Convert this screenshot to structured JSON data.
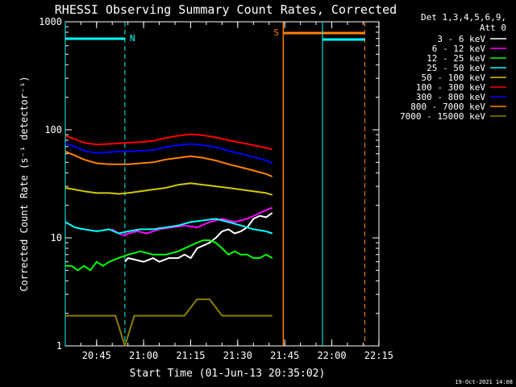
{
  "chart_data": {
    "type": "line",
    "title": "RHESSI Observing Summary Count Rates, Corrected",
    "xlabel": "Start Time (01-Jun-13 20:35:02)",
    "ylabel": "Corrected Count Rate (s⁻¹ detector⁻¹)",
    "y_scale": "log",
    "ylim": [
      1,
      1000
    ],
    "xlim_minutes": [
      0,
      100
    ],
    "x_tick_labels": [
      "20:45",
      "21:00",
      "21:15",
      "21:30",
      "21:45",
      "22:00",
      "22:15"
    ],
    "y_tick_labels": [
      "1",
      "10",
      "100",
      "1000"
    ],
    "legend_header": [
      "Det 1,3,4,5,6,9,",
      "Att 0"
    ],
    "footer_date": "19-Oct-2021 14:08",
    "annotations": [
      {
        "label": "N",
        "x_minutes": 19.0,
        "color": "#00ffff"
      },
      {
        "label": "S",
        "x_minutes": 69.5,
        "color": "#ff8000"
      }
    ],
    "series": [
      {
        "name": "3 - 6 keV",
        "color": "#ffffff"
      },
      {
        "name": "6 - 12 keV",
        "color": "#ff00ff"
      },
      {
        "name": "12 - 25 keV",
        "color": "#00ff00"
      },
      {
        "name": "25 - 50 keV",
        "color": "#00ffff"
      },
      {
        "name": "50 - 100 keV",
        "color": "#d4c800"
      },
      {
        "name": "100 - 300 keV",
        "color": "#ff0000"
      },
      {
        "name": "300 - 800 keV",
        "color": "#0000ff"
      },
      {
        "name": "800 - 7000 keV",
        "color": "#ff8000"
      },
      {
        "name": "7000 - 15000 keV",
        "color": "#8b8000"
      }
    ],
    "series_points": [
      {
        "name": "3 - 6 keV",
        "x": [
          19,
          20,
          22,
          25,
          28,
          30,
          33,
          36,
          38,
          40,
          42,
          44,
          46,
          48,
          50,
          52,
          54,
          56,
          58,
          60,
          62,
          64,
          66
        ],
        "y": [
          6.0,
          6.5,
          6.3,
          6.0,
          6.5,
          6.0,
          6.5,
          6.5,
          7.0,
          6.5,
          8.0,
          8.5,
          9.0,
          10.0,
          11.5,
          12.0,
          11.0,
          11.5,
          12.5,
          15.0,
          16.0,
          15.5,
          17.0
        ]
      },
      {
        "name": "6 - 12 keV",
        "x": [
          15,
          17,
          19,
          20,
          23,
          26,
          30,
          34,
          38,
          42,
          46,
          50,
          54,
          58,
          62,
          66
        ],
        "y": [
          12.0,
          11.0,
          10.5,
          11.0,
          11.5,
          11.0,
          12.0,
          12.5,
          13.0,
          12.5,
          14.0,
          15.0,
          14.0,
          15.0,
          17.0,
          19.0
        ]
      },
      {
        "name": "12 - 25 keV",
        "x": [
          0,
          2,
          4,
          6,
          8,
          10,
          12,
          14,
          17,
          20,
          24,
          28,
          32,
          36,
          40,
          42,
          44,
          46,
          48,
          50,
          52,
          54,
          56,
          58,
          60,
          62,
          64,
          66
        ],
        "y": [
          5.5,
          5.5,
          5.0,
          5.5,
          5.0,
          6.0,
          5.5,
          6.0,
          6.5,
          7.0,
          7.5,
          7.0,
          7.0,
          7.5,
          8.5,
          9.0,
          9.5,
          9.5,
          9.0,
          8.0,
          7.0,
          7.5,
          7.0,
          7.0,
          6.5,
          6.5,
          7.0,
          6.5
        ]
      },
      {
        "name": "25 - 50 keV",
        "x": [
          0,
          3,
          6,
          10,
          14,
          17,
          20,
          24,
          28,
          32,
          36,
          40,
          44,
          48,
          52,
          56,
          60,
          64,
          66
        ],
        "y": [
          14.0,
          12.5,
          12.0,
          11.5,
          12.0,
          11.0,
          11.5,
          12.0,
          12.0,
          12.5,
          13.0,
          14.0,
          14.5,
          15.0,
          14.0,
          13.0,
          12.0,
          11.5,
          11.0
        ]
      },
      {
        "name": "50 - 100 keV",
        "x": [
          0,
          3,
          6,
          10,
          14,
          17,
          20,
          24,
          28,
          32,
          36,
          40,
          44,
          48,
          52,
          56,
          60,
          64,
          66
        ],
        "y": [
          29.0,
          28.0,
          27.0,
          26.0,
          26.0,
          25.5,
          26.0,
          27.0,
          28.0,
          29.0,
          31.0,
          32.0,
          31.0,
          30.0,
          29.0,
          28.0,
          27.0,
          26.0,
          25.0
        ]
      },
      {
        "name": "100 - 300 keV",
        "x": [
          0,
          3,
          6,
          10,
          14,
          17,
          20,
          24,
          28,
          32,
          36,
          40,
          44,
          48,
          52,
          56,
          60,
          64,
          66
        ],
        "y": [
          88.0,
          82.0,
          76.0,
          73.0,
          74.0,
          75.0,
          76.0,
          77.0,
          79.0,
          84.0,
          88.0,
          91.0,
          89.0,
          85.0,
          80.0,
          76.0,
          72.0,
          68.0,
          66.0
        ]
      },
      {
        "name": "300 - 800 keV",
        "x": [
          0,
          3,
          6,
          10,
          14,
          17,
          20,
          24,
          28,
          32,
          36,
          40,
          44,
          48,
          52,
          56,
          60,
          64,
          66
        ],
        "y": [
          75.0,
          70.0,
          64.0,
          61.0,
          62.0,
          63.0,
          63.0,
          64.0,
          65.0,
          69.0,
          72.0,
          74.0,
          72.0,
          69.0,
          64.0,
          60.0,
          56.0,
          52.0,
          49.0
        ]
      },
      {
        "name": "800 - 7000 keV",
        "x": [
          0,
          3,
          6,
          10,
          14,
          17,
          20,
          24,
          28,
          32,
          36,
          40,
          44,
          48,
          52,
          56,
          60,
          64,
          66
        ],
        "y": [
          63.0,
          58.0,
          53.0,
          49.0,
          48.0,
          48.0,
          48.0,
          49.0,
          50.0,
          53.0,
          55.0,
          57.0,
          55.0,
          52.0,
          48.0,
          45.0,
          42.0,
          39.0,
          37.0
        ]
      },
      {
        "name": "7000 - 15000 keV",
        "x": [
          0,
          4,
          8,
          12,
          16,
          19,
          22,
          26,
          30,
          34,
          38,
          42,
          46,
          50,
          54,
          58,
          62,
          66
        ],
        "y": [
          1.9,
          1.9,
          1.9,
          1.9,
          1.9,
          1.0,
          1.9,
          1.9,
          1.9,
          1.9,
          1.9,
          2.7,
          2.7,
          1.9,
          1.9,
          1.9,
          1.9,
          1.9
        ]
      }
    ]
  }
}
